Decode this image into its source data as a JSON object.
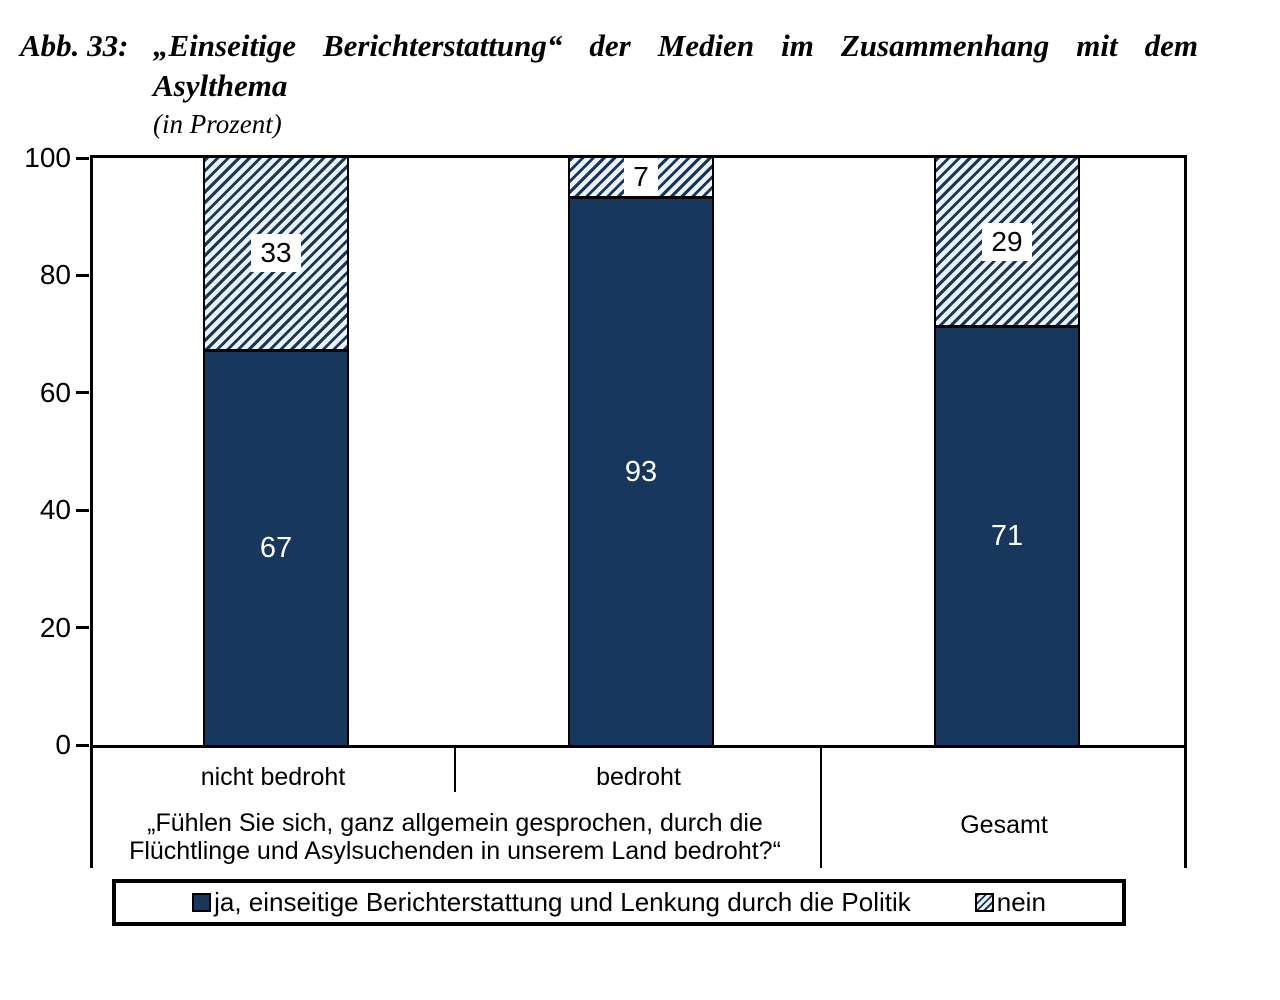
{
  "figure": {
    "label": "Abb. 33:",
    "title_line1": "„Einseitige Berichterstattung“ der Medien im Zusammenhang mit dem",
    "title_line2": "Asylthema",
    "subtitle": "(in Prozent)"
  },
  "colors": {
    "bar_solid": "#17375C",
    "hatch_line": "#17375C",
    "hatch_bg": "#edf2f9",
    "axis": "#000000",
    "bar_label_solid": "#ffffff",
    "bar_label_hatch": "#000000"
  },
  "chart_data": {
    "type": "bar",
    "variant": "stacked-100-percent",
    "title": "Abb. 33: „Einseitige Berichterstattung“ der Medien im Zusammenhang mit dem Asylthema (in Prozent)",
    "categories": [
      "nicht bedroht",
      "bedroht",
      "Gesamt"
    ],
    "series": [
      {
        "name": "ja, einseitige Berichterstattung und Lenkung durch die Politik",
        "values": [
          67,
          93,
          71
        ],
        "fill": "solid-navy"
      },
      {
        "name": "nein",
        "values": [
          33,
          7,
          29
        ],
        "fill": "diagonal-hatch"
      }
    ],
    "ylim": [
      0,
      100
    ],
    "yticks": [
      "0",
      "20",
      "40",
      "60",
      "80",
      "100"
    ],
    "grid": false,
    "legend_position": "bottom",
    "x_group_label_line1": "„Fühlen Sie sich, ganz allgemein gesprochen, durch die",
    "x_group_label_line2": "Flüchtlinge und Asylsuchenden in unserem Land bedroht?“",
    "grouped_categories": [
      "nicht bedroht",
      "bedroht"
    ],
    "standalone_category": "Gesamt"
  },
  "legend": {
    "items": [
      {
        "label": "ja, einseitige Berichterstattung und Lenkung durch die Politik",
        "marker": "solid-navy-square"
      },
      {
        "label": "nein",
        "marker": "hatched-square"
      }
    ]
  }
}
